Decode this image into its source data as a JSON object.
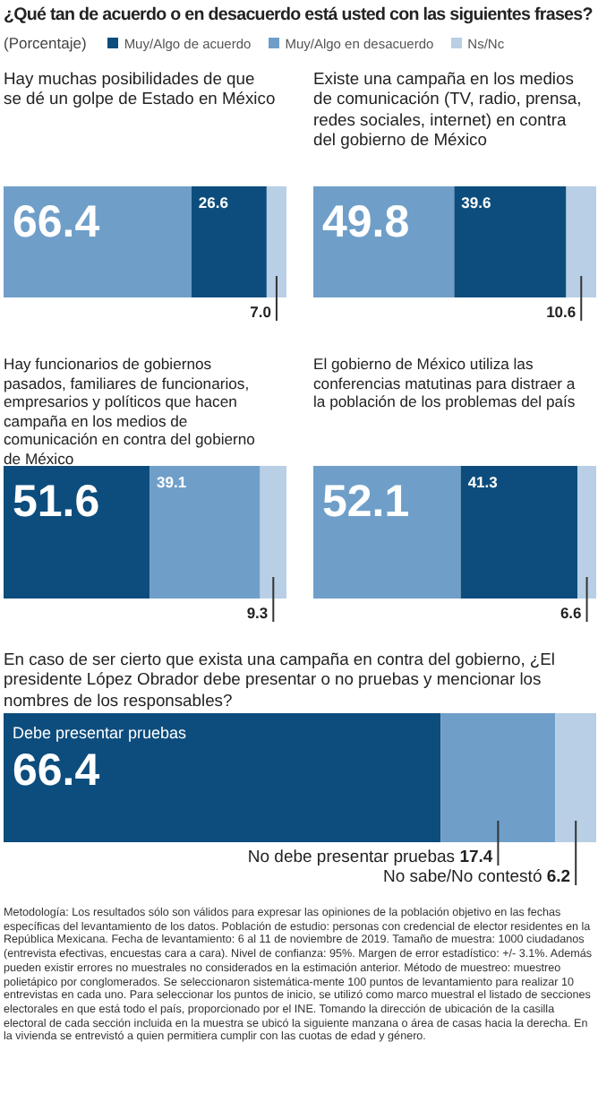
{
  "chart_data": [
    {
      "type": "bar",
      "orientation": "horizontal",
      "stacked": true,
      "legend": "top",
      "title": "¿Qué tan de acuerdo o en desacuerdo está usted con las siguientes frases?",
      "subtitle": "(Porcentaje)",
      "annotations": [
        "Hay muchas posibilidades de que se dé un golpe de Estado en México"
      ],
      "categories": [
        null
      ],
      "series": [
        {
          "name": "Muy/Algo en desacuerdo",
          "color": "#6f9fc9",
          "values": [
            66.4
          ],
          "value_labels": [
            "66.4"
          ]
        },
        {
          "name": "Muy/Algo de acuerdo",
          "color": "#0d4d7d",
          "values": [
            26.6
          ],
          "value_labels": [
            "26.6"
          ]
        },
        {
          "name": "Ns/Nc",
          "color": "#b8cfe5",
          "values": [
            7.0
          ],
          "value_labels": [
            "7.0"
          ]
        }
      ]
    },
    {
      "type": "bar",
      "orientation": "horizontal",
      "stacked": true,
      "title": "Existe una campaña en los medios de comunicación (TV, radio, prensa, redes sociales, internet) en contra del gobierno de México",
      "categories": [
        null
      ],
      "series": [
        {
          "color": "#6f9fc9",
          "values": [
            49.8
          ],
          "value_labels": [
            "49.8"
          ]
        },
        {
          "color": "#0d4d7d",
          "values": [
            39.6
          ],
          "value_labels": [
            "39.6"
          ]
        },
        {
          "color": "#b8cfe5",
          "values": [
            10.6
          ],
          "value_labels": [
            "10.6"
          ]
        }
      ]
    },
    {
      "type": "bar",
      "orientation": "horizontal",
      "stacked": true,
      "title": "Hay funcionarios de gobiernos pasados, familiares de funcionarios, empresarios y políticos que hacen campaña en los medios de comunicación en contra del gobierno de México",
      "categories": [
        null
      ],
      "series": [
        {
          "color": "#0d4d7d",
          "values": [
            51.6
          ],
          "value_labels": [
            "51.6"
          ]
        },
        {
          "color": "#6f9fc9",
          "values": [
            39.1
          ],
          "value_labels": [
            "39.1"
          ]
        },
        {
          "color": "#b8cfe5",
          "values": [
            9.3
          ],
          "value_labels": [
            "9.3"
          ]
        }
      ]
    },
    {
      "type": "bar",
      "orientation": "horizontal",
      "stacked": true,
      "title": "El gobierno de México utiliza las conferencias matutinas para distraer a la población de los problemas del país",
      "categories": [
        null
      ],
      "series": [
        {
          "color": "#6f9fc9",
          "values": [
            52.1
          ],
          "value_labels": [
            "52.1"
          ]
        },
        {
          "color": "#0d4d7d",
          "values": [
            41.3
          ],
          "value_labels": [
            "41.3"
          ]
        },
        {
          "color": "#b8cfe5",
          "values": [
            6.6
          ],
          "value_labels": [
            "6.6"
          ]
        }
      ]
    },
    {
      "type": "bar",
      "orientation": "horizontal",
      "stacked": true,
      "title": "En caso de ser cierto que exista una campaña en contra del gobierno, ¿El presidente López Obrador debe presentar o no pruebas y mencionar los nombres de los responsables?",
      "categories": [
        null
      ],
      "series": [
        {
          "name": "Debe presentar pruebas",
          "color": "#0d4d7d",
          "values": [
            66.4
          ],
          "value_labels": [
            "66.4"
          ]
        },
        {
          "name": "No debe presentar pruebas",
          "color": "#6f9fc9",
          "values": [
            17.4
          ],
          "value_labels": [
            "17.4"
          ]
        },
        {
          "name": "No sabe/No contestó",
          "color": "#b8cfe5",
          "values": [
            6.2
          ],
          "value_labels": [
            "6.2"
          ]
        }
      ],
      "annotations": [
        "Metodología: Los resultados sólo son válidos para expresar las opiniones de la población objetivo en las fechas específicas del levantamiento de los datos. Población de estudio: personas con credencial de elector residentes en la República Mexicana. Fecha de levantamiento: 6 al 11 de noviembre de 2019. Tamaño de muestra: 1000 ciudadanos (entrevista efectivas, encuestas cara a cara). Nivel de confianza: 95%. Margen de error estadístico: +/- 3.1%. Además pueden existir errores no muestrales no considerados en la estimación anterior. Método de muestreo: muestreo polietápico por conglomerados. Se seleccionaron sistemática-mente 100 puntos de levantamiento para realizar 10 entrevistas en cada uno. Para seleccionar los puntos de inicio, se utilizó como marco muestral el listado de secciones electorales en que está todo el país, proporcionado por el INE. Tomando la dirección de ubicación de la casilla electoral de cada sección incluida en la muestra se ubicó la siguiente manzana o área de casas hacia la derecha. En la vivienda se entrevistó a quien permitiera cumplir con las cuotas de edad y género."
      ]
    }
  ]
}
